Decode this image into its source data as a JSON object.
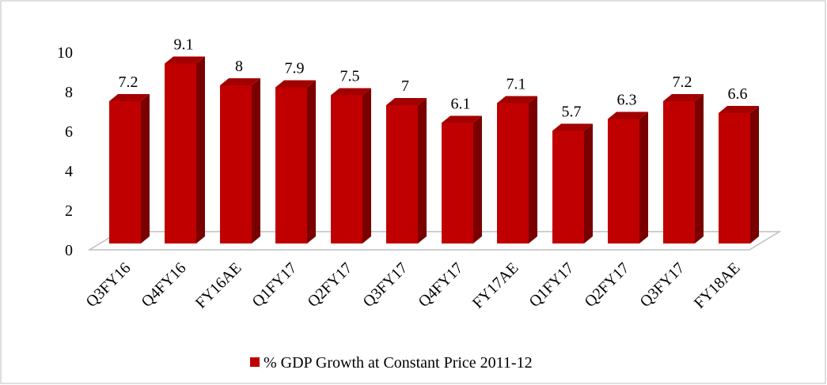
{
  "chart_data": {
    "type": "bar3d",
    "categories": [
      "Q3FY16",
      "Q4FY16",
      "FY16AE",
      "Q1FY17",
      "Q2FY17",
      "Q3FY17",
      "Q4FY17",
      "FY17AE",
      "Q1FY17",
      "Q2FY17",
      "Q3FY17",
      "FY18AE"
    ],
    "series": [
      {
        "name": "% GDP Growth at Constant Price 2011-12",
        "color": "#c00000",
        "values": [
          7.2,
          9.1,
          8,
          7.9,
          7.5,
          7,
          6.1,
          7.1,
          5.7,
          6.3,
          7.2,
          6.6
        ]
      }
    ],
    "ylim": [
      0,
      10
    ],
    "yticks": [
      0,
      2,
      4,
      6,
      8,
      10
    ],
    "legend": "bottom"
  }
}
